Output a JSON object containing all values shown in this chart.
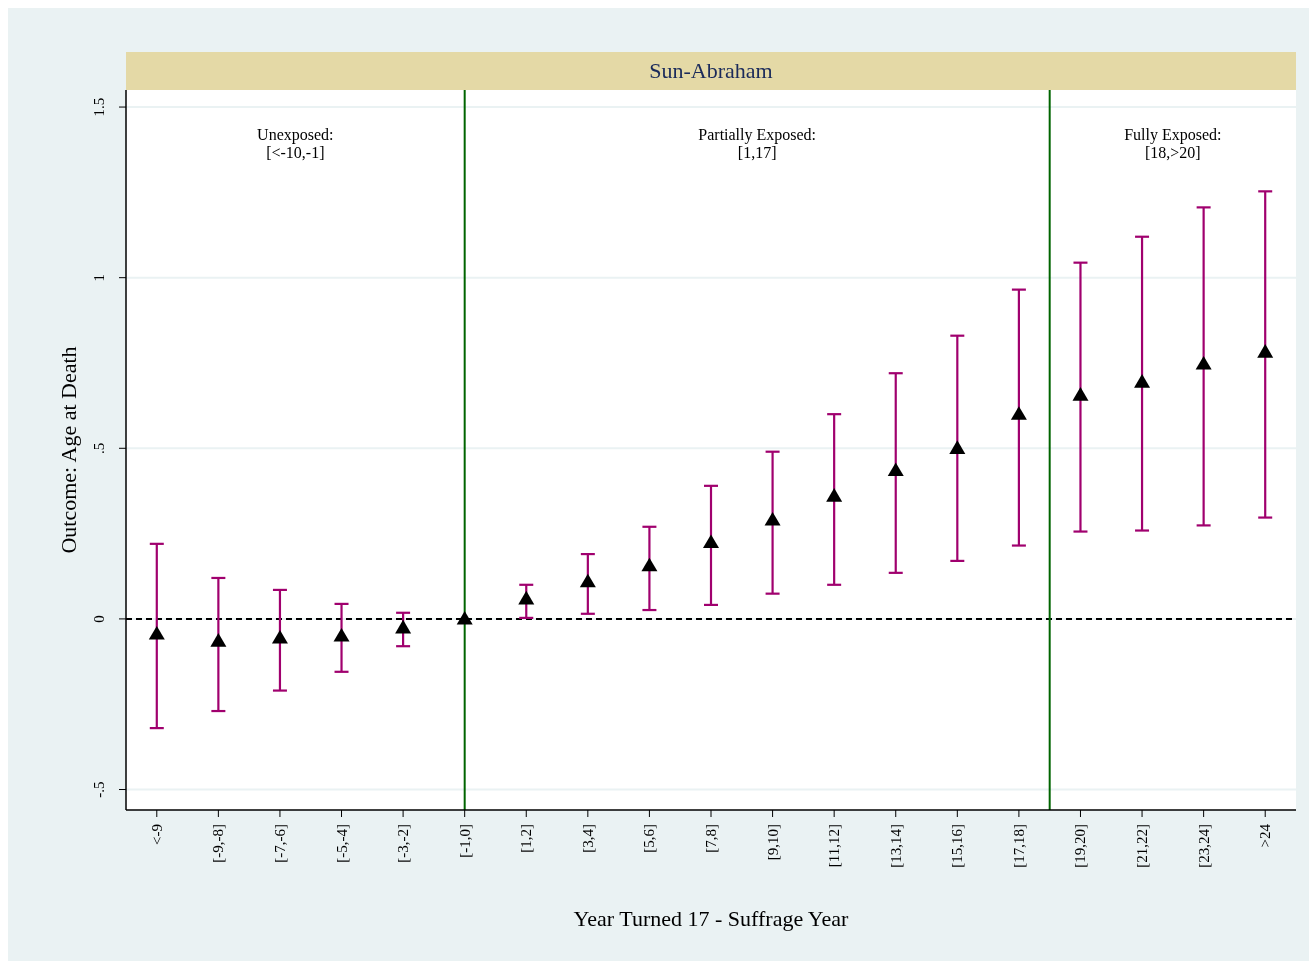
{
  "chart_data": {
    "type": "scatter",
    "title": "Sun-Abraham",
    "xlabel": "Year Turned 17 - Suffrage Year",
    "ylabel": "Outcome: Age at Death",
    "categories": [
      "<-9",
      "[-9,-8]",
      "[-7,-6]",
      "[-5,-4]",
      "[-3,-2]",
      "[-1,0]",
      "[1,2]",
      "[3,4]",
      "[5,6]",
      "[7,8]",
      "[9,10]",
      "[11,12]",
      "[13,14]",
      "[15,16]",
      "[17,18]",
      "[19,20]",
      "[21,22]",
      "[23,24]",
      ">24"
    ],
    "ylim": [
      -0.56,
      1.55
    ],
    "yticks": [
      {
        "value": -0.5,
        "label": "-.5"
      },
      0,
      {
        "value": 0.5,
        "label": ".5"
      },
      1,
      1.5
    ],
    "grid": "y",
    "marker": "triangle",
    "series": [
      {
        "color": "#000000",
        "values": [
          -0.044,
          -0.065,
          -0.056,
          -0.05,
          -0.026,
          0,
          0.059,
          0.109,
          0.156,
          0.224,
          0.29,
          0.36,
          0.435,
          0.5,
          0.6,
          0.656,
          0.694,
          0.747,
          0.782
        ],
        "errors": [
          [
            -0.32,
            0.22
          ],
          [
            -0.27,
            0.12
          ],
          [
            -0.21,
            0.085
          ],
          [
            -0.155,
            0.044
          ],
          [
            -0.08,
            0.018
          ],
          null,
          [
            0.003,
            0.1
          ],
          [
            0.015,
            0.19
          ],
          [
            0.026,
            0.27
          ],
          [
            0.041,
            0.39
          ],
          [
            0.074,
            0.49
          ],
          [
            0.1,
            0.6
          ],
          [
            0.135,
            0.72
          ],
          [
            0.17,
            0.83
          ],
          [
            0.215,
            0.965
          ],
          [
            0.256,
            1.044
          ],
          [
            0.259,
            1.12
          ],
          [
            0.274,
            1.206
          ],
          [
            0.297,
            1.253
          ]
        ]
      }
    ],
    "ref_lines": [
      {
        "axis": "y",
        "value": 0,
        "color": "#000000",
        "line_style": "dashed"
      },
      {
        "axis": "x",
        "value": "[-1,0]",
        "color": "#006400",
        "line_style": "solid"
      }
    ],
    "annotations": [
      "Unexposed:\n[<-10,-1]",
      "Partially Exposed:\n[1,17]",
      "Fully Exposed:\n[18,>20]"
    ]
  }
}
